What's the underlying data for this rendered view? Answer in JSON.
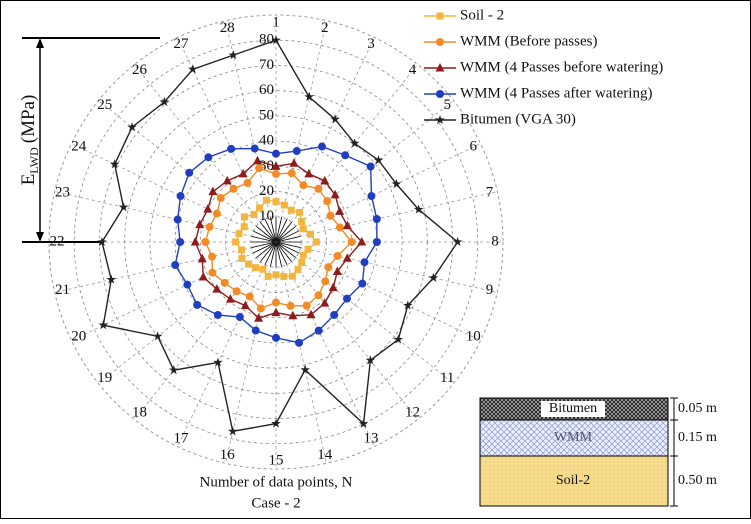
{
  "chart_data": {
    "type": "radar",
    "y_label_base": "E",
    "y_label_sub": "LWD",
    "y_label_unit": "(MPa)",
    "x_label": "Number of data points, N",
    "caption": "Case - 2",
    "categories": [
      "1",
      "2",
      "3",
      "4",
      "5",
      "6",
      "7",
      "8",
      "9",
      "10",
      "11",
      "12",
      "13",
      "14",
      "15",
      "16",
      "17",
      "18",
      "19",
      "20",
      "21",
      "22",
      "23",
      "24",
      "25",
      "26",
      "27",
      "28"
    ],
    "rlim": [
      0,
      90
    ],
    "rticks": [
      10,
      20,
      30,
      40,
      50,
      60,
      70,
      80
    ],
    "grid": true,
    "legend": "upper right",
    "series": [
      {
        "name": "Soil - 2",
        "color": "#f2b640",
        "marker": "square",
        "values": [
          16,
          15,
          14,
          15,
          13,
          12,
          14,
          16,
          13,
          12,
          13,
          14,
          15,
          14,
          13,
          14,
          12,
          13,
          14,
          15,
          14,
          16,
          15,
          14,
          16,
          14,
          15,
          17
        ]
      },
      {
        "name": "WMM (Before passes)",
        "color": "#f28a26",
        "marker": "circle",
        "values": [
          27,
          28,
          25,
          27,
          26,
          24,
          26,
          30,
          25,
          23,
          25,
          27,
          28,
          26,
          24,
          27,
          24,
          25,
          26,
          28,
          26,
          28,
          27,
          26,
          28,
          27,
          26,
          30
        ]
      },
      {
        "name": "WMM (4 Passes before watering)",
        "color": "#8e1c1c",
        "marker": "triangle",
        "values": [
          30,
          32,
          30,
          31,
          30,
          28,
          29,
          34,
          29,
          27,
          29,
          31,
          32,
          30,
          28,
          31,
          28,
          29,
          30,
          32,
          30,
          32,
          31,
          30,
          32,
          31,
          30,
          33
        ]
      },
      {
        "name": "WMM (4 Passes after watering)",
        "color": "#1f3ec2",
        "marker": "circle",
        "values": [
          35,
          37,
          42,
          44,
          48,
          42,
          41,
          40,
          36,
          38,
          36,
          37,
          39,
          41,
          38,
          36,
          33,
          37,
          40,
          39,
          41,
          38,
          40,
          42,
          44,
          43,
          41,
          38
        ]
      },
      {
        "name": "Bitumen (VGA 30)",
        "color": "#222222",
        "marker": "star",
        "values": [
          80,
          59,
          54,
          50,
          52,
          53,
          58,
          72,
          64,
          58,
          62,
          60,
          80,
          52,
          72,
          77,
          53,
          65,
          60,
          76,
          67,
          69,
          62,
          71,
          73,
          71,
          76,
          76
        ]
      }
    ]
  },
  "layers": [
    {
      "name": "Bitumen",
      "thickness": "0.05 m"
    },
    {
      "name": "WMM",
      "thickness": "0.15 m"
    },
    {
      "name": "Soil-2",
      "thickness": "0.50 m"
    }
  ]
}
